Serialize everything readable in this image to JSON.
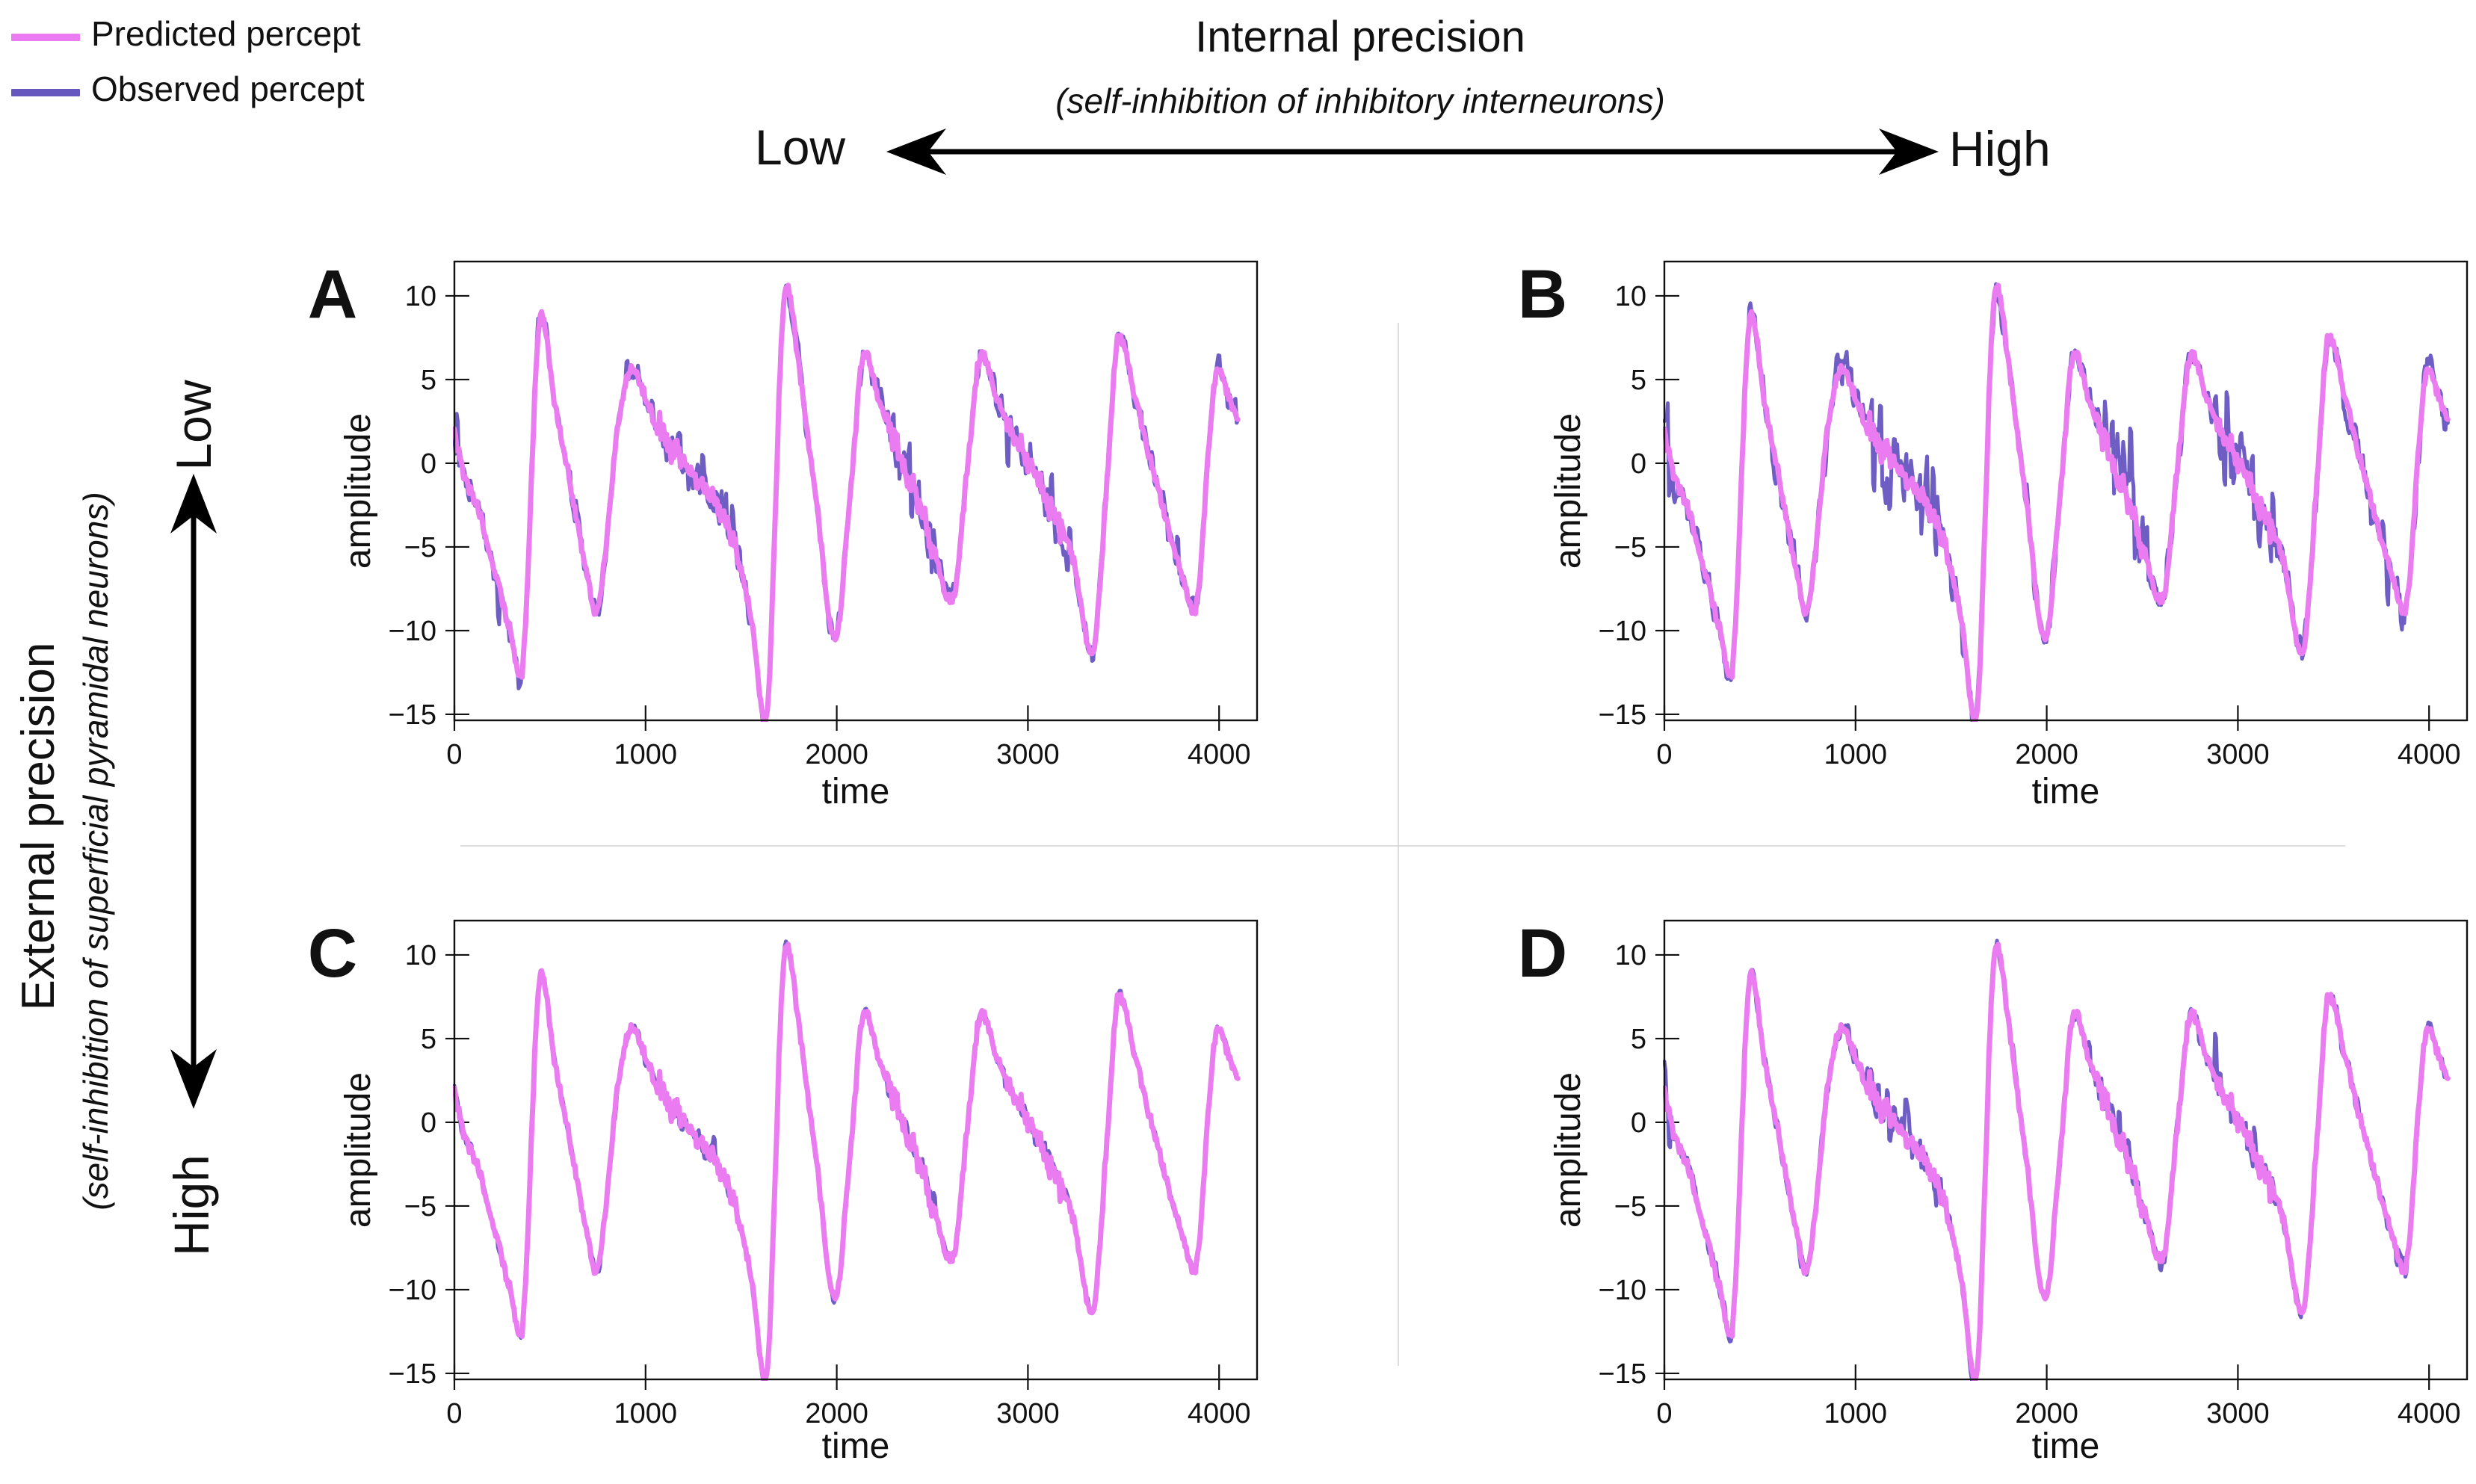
{
  "legend": {
    "items": [
      {
        "label": "Predicted percept",
        "color": "#ea7bf0"
      },
      {
        "label": "Observed percept",
        "color": "#6557bd"
      }
    ]
  },
  "top_axis": {
    "title": "Internal precision",
    "subtitle": "(self-inhibition of inhibitory interneurons)",
    "low_label": "Low",
    "high_label": "High"
  },
  "left_axis": {
    "title": "External precision",
    "subtitle": "(self-inhibition of superficial pyramidal neurons)",
    "low_label": "Low",
    "high_label": "High"
  },
  "chart_data": {
    "type": "line",
    "xlabel": "time",
    "ylabel": "amplitude",
    "x_ticks": [
      0,
      1000,
      2000,
      3000,
      4000
    ],
    "y_ticks": [
      10,
      5,
      0,
      -5,
      -10,
      -15
    ],
    "xlim": [
      0,
      4200
    ],
    "ylim": [
      -15.4,
      12.05
    ],
    "grid": false,
    "series_names": [
      "Predicted percept",
      "Observed percept"
    ],
    "line_colors": {
      "predicted": "#ea7bf0",
      "observed": "#6e5ec4"
    },
    "predicted_keypoints": [
      [
        0,
        2.4
      ],
      [
        15,
        1.0
      ],
      [
        45,
        -0.6
      ],
      [
        120,
        -2.5
      ],
      [
        210,
        -6.5
      ],
      [
        300,
        -10.5
      ],
      [
        345,
        -12.8
      ],
      [
        455,
        9.0
      ],
      [
        520,
        4.0
      ],
      [
        610,
        -1.5
      ],
      [
        700,
        -7.0
      ],
      [
        740,
        -8.8
      ],
      [
        860,
        2.5
      ],
      [
        935,
        5.7
      ],
      [
        1000,
        3.8
      ],
      [
        1120,
        1.2
      ],
      [
        1260,
        -0.8
      ],
      [
        1400,
        -3.0
      ],
      [
        1480,
        -5.5
      ],
      [
        1560,
        -10.0
      ],
      [
        1625,
        -15.5
      ],
      [
        1735,
        10.6
      ],
      [
        1800,
        6.0
      ],
      [
        1900,
        -3.0
      ],
      [
        1990,
        -10.6
      ],
      [
        2070,
        -2.0
      ],
      [
        2145,
        6.6
      ],
      [
        2230,
        3.5
      ],
      [
        2350,
        0.0
      ],
      [
        2450,
        -3.0
      ],
      [
        2540,
        -6.5
      ],
      [
        2600,
        -8.3
      ],
      [
        2690,
        0.5
      ],
      [
        2755,
        6.5
      ],
      [
        2840,
        3.8
      ],
      [
        2980,
        0.5
      ],
      [
        3120,
        -2.5
      ],
      [
        3240,
        -6.0
      ],
      [
        3335,
        -11.3
      ],
      [
        3420,
        0.0
      ],
      [
        3475,
        7.8
      ],
      [
        3560,
        4.0
      ],
      [
        3690,
        -2.0
      ],
      [
        3800,
        -6.5
      ],
      [
        3875,
        -8.8
      ],
      [
        3950,
        1.5
      ],
      [
        3995,
        5.7
      ],
      [
        4050,
        4.0
      ],
      [
        4098,
        2.6
      ]
    ],
    "high_noise_time_windows": [
      [
        1060,
        1470
      ],
      [
        2260,
        2520
      ],
      [
        2880,
        3220
      ]
    ],
    "panels": [
      {
        "label": "A",
        "internal_precision": "Low",
        "external_precision": "Low",
        "predicted_noise_sd": 0.18,
        "observed_noise_sd": 0.4
      },
      {
        "label": "B",
        "internal_precision": "High",
        "external_precision": "Low",
        "predicted_noise_sd": 0.18,
        "observed_noise_sd": 0.55
      },
      {
        "label": "C",
        "internal_precision": "Low",
        "external_precision": "High",
        "predicted_noise_sd": 0.18,
        "observed_noise_sd": 0.12
      },
      {
        "label": "D",
        "internal_precision": "High",
        "external_precision": "High",
        "predicted_noise_sd": 0.18,
        "observed_noise_sd": 0.28
      }
    ]
  }
}
